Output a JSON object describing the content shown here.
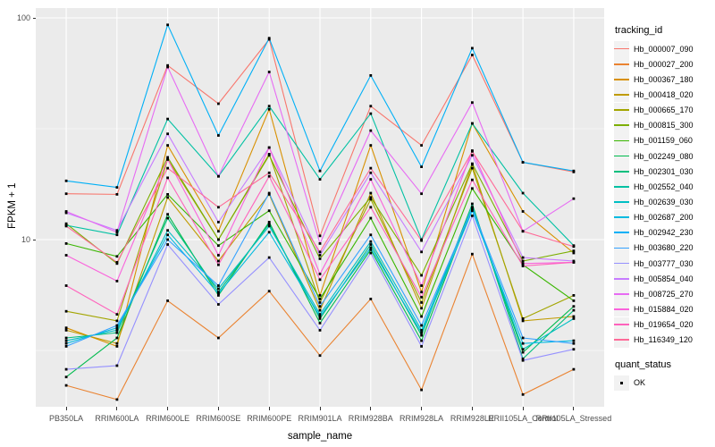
{
  "chart_data": {
    "type": "line",
    "title": "",
    "xlabel": "sample_name",
    "ylabel": "FPKM + 1",
    "y_scale": "log10",
    "ylim": [
      1.76,
      115
    ],
    "y_major_ticks": [
      10,
      100
    ],
    "y_tick_labels": [
      "10",
      "100"
    ],
    "y_minor_ticks": [
      3.162,
      31.62
    ],
    "grid": true,
    "legend_position": "right",
    "marker": "black-square",
    "categories": [
      "PB350LA",
      "RRIM600LA",
      "RRIM600LE",
      "RRIM600SE",
      "RRIM600PE",
      "RRIM901LA",
      "RRIM928BA",
      "RRIM928LA",
      "RRIM928LE",
      "RRII105LA_Control",
      "RRII105LA_Stressed"
    ],
    "series": [
      {
        "name": "Hb_000007_090",
        "color": "#F8766D",
        "values": [
          16.1,
          16.0,
          61,
          41,
          80,
          10.4,
          40,
          26.6,
          68,
          22.3,
          20.2
        ]
      },
      {
        "name": "Hb_000027_200",
        "color": "#EA8331",
        "values": [
          2.2,
          1.9,
          5.3,
          3.6,
          5.85,
          3.0,
          5.4,
          2.1,
          8.6,
          2.0,
          2.6
        ]
      },
      {
        "name": "Hb_000367_180",
        "color": "#D89000",
        "values": [
          4.0,
          3.3,
          26.6,
          10.9,
          38.7,
          5.6,
          26.6,
          5.8,
          33.4,
          13.4,
          8.7
        ]
      },
      {
        "name": "Hb_000418_020",
        "color": "#C09B00",
        "values": [
          3.9,
          3.4,
          15.5,
          8.0,
          16.0,
          4.8,
          16.2,
          4.9,
          21.8,
          4.3,
          4.5
        ]
      },
      {
        "name": "Hb_000665_170",
        "color": "#A3A500",
        "values": [
          4.75,
          4.3,
          23.0,
          10.0,
          24.3,
          5.2,
          15.2,
          5.2,
          21.0,
          4.4,
          5.6
        ]
      },
      {
        "name": "Hb_000815_300",
        "color": "#7CAE00",
        "values": [
          11.8,
          7.8,
          23.5,
          10.0,
          24.0,
          8.2,
          15.5,
          6.9,
          22.0,
          8.0,
          8.9
        ]
      },
      {
        "name": "Hb_001159_060",
        "color": "#39B600",
        "values": [
          9.6,
          8.4,
          16.0,
          9.4,
          13.5,
          5.4,
          12.5,
          4.5,
          17.0,
          7.7,
          5.3
        ]
      },
      {
        "name": "Hb_002249_080",
        "color": "#00BB4E",
        "values": [
          2.4,
          3.6,
          13.0,
          5.6,
          12.0,
          4.2,
          9.0,
          3.5,
          14.0,
          3.1,
          5.0
        ]
      },
      {
        "name": "Hb_002301_030",
        "color": "#00BF7D",
        "values": [
          3.6,
          3.8,
          12.5,
          5.8,
          11.8,
          4.4,
          9.5,
          3.7,
          14.5,
          2.9,
          4.8
        ]
      },
      {
        "name": "Hb_002552_040",
        "color": "#00C1A3",
        "values": [
          11.6,
          10.5,
          35,
          19.3,
          40,
          18.7,
          37,
          10.0,
          33.4,
          16.2,
          9.4
        ]
      },
      {
        "name": "Hb_002639_030",
        "color": "#00BFC4",
        "values": [
          3.5,
          3.9,
          11.0,
          6.0,
          11.5,
          4.6,
          9.8,
          3.9,
          14.0,
          3.2,
          4.4
        ]
      },
      {
        "name": "Hb_002687_200",
        "color": "#00BAE0",
        "values": [
          3.4,
          4.0,
          10.5,
          5.7,
          10.8,
          4.5,
          9.2,
          3.8,
          13.5,
          3.4,
          3.5
        ]
      },
      {
        "name": "Hb_002942_230",
        "color": "#00B0F6",
        "values": [
          18.4,
          17.2,
          93,
          29.5,
          81,
          20.4,
          55,
          21.3,
          73,
          22.3,
          20.4
        ]
      },
      {
        "name": "Hb_003680_220",
        "color": "#35A2FF",
        "values": [
          3.3,
          4.1,
          10.0,
          6.2,
          16.2,
          5.0,
          10.5,
          4.1,
          13.8,
          3.6,
          3.4
        ]
      },
      {
        "name": "Hb_003777_030",
        "color": "#9590FF",
        "values": [
          2.6,
          2.7,
          9.5,
          5.1,
          8.3,
          3.9,
          8.7,
          3.3,
          12.8,
          2.85,
          3.2
        ]
      },
      {
        "name": "Hb_005854_040",
        "color": "#C77CFF",
        "values": [
          13.2,
          11.0,
          30,
          12.0,
          26,
          8.5,
          20,
          8.8,
          24,
          8.3,
          8.0
        ]
      },
      {
        "name": "Hb_008725_270",
        "color": "#E76BF3",
        "values": [
          13.4,
          10.8,
          60,
          19.3,
          57,
          9.6,
          31,
          16.1,
          41.5,
          10.9,
          15.3
        ]
      },
      {
        "name": "Hb_015884_020",
        "color": "#FA62DB",
        "values": [
          8.5,
          6.5,
          23,
          8.5,
          26,
          7.0,
          18.7,
          6.2,
          25.2,
          7.8,
          7.9
        ]
      },
      {
        "name": "Hb_019654_020",
        "color": "#FF62BC",
        "values": [
          6.2,
          4.6,
          19,
          7.7,
          19.3,
          6.6,
          14,
          5.5,
          18.6,
          7.6,
          7.9
        ]
      },
      {
        "name": "Hb_116349_120",
        "color": "#FF6A98",
        "values": [
          11.5,
          7.9,
          21,
          14,
          20,
          8.8,
          21,
          9.9,
          25,
          10.9,
          9.3
        ]
      }
    ]
  },
  "legend": {
    "tracking_title": "tracking_id",
    "quant_title": "quant_status",
    "quant_items": [
      {
        "label": "OK",
        "marker": "black-square-icon"
      }
    ]
  },
  "style": {
    "panel_bg": "#EBEBEB",
    "grid_color": "#FFFFFF",
    "tick_label_color": "#4D4D4D",
    "axis_title_color": "#000000",
    "point_color": "#000000",
    "legend_key_bg": "#F2F2F2"
  }
}
